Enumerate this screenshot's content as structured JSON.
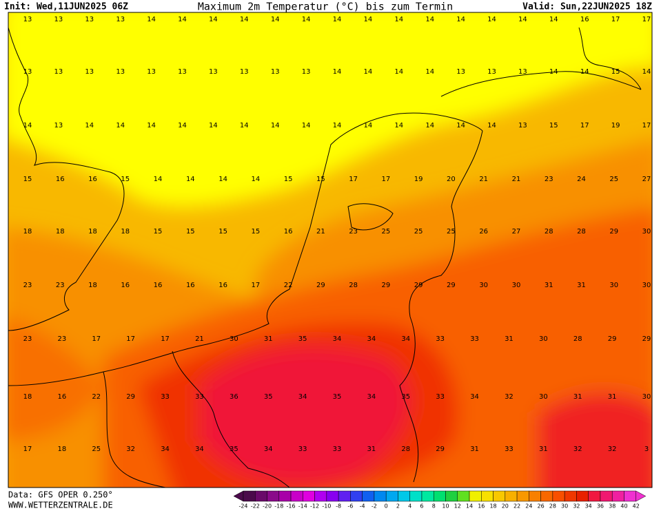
{
  "header": {
    "init": "Init: Wed,11JUN2025 06Z",
    "title": "Maximum 2m Temperatur (°C) bis zum Termin",
    "valid": "Valid: Sun,22JUN2025 18Z"
  },
  "map": {
    "rows": [
      [
        13,
        13,
        13,
        13,
        14,
        14,
        14,
        14,
        14,
        14,
        14,
        14,
        14,
        14,
        14,
        14,
        14,
        14,
        16,
        17,
        17
      ],
      [
        13,
        13,
        13,
        13,
        13,
        13,
        13,
        13,
        13,
        13,
        14,
        14,
        14,
        14,
        13,
        13,
        13,
        14,
        14,
        15,
        14
      ],
      [
        14,
        13,
        14,
        14,
        14,
        14,
        14,
        14,
        14,
        14,
        14,
        14,
        14,
        14,
        14,
        14,
        13,
        15,
        17,
        19,
        17
      ],
      [
        15,
        16,
        16,
        15,
        14,
        14,
        14,
        14,
        15,
        15,
        17,
        17,
        19,
        20,
        21,
        21,
        23,
        24,
        25,
        27
      ],
      [
        18,
        18,
        18,
        18,
        15,
        15,
        15,
        15,
        16,
        21,
        23,
        25,
        25,
        25,
        26,
        27,
        28,
        28,
        29,
        30
      ],
      [
        23,
        23,
        18,
        16,
        16,
        16,
        16,
        17,
        22,
        29,
        28,
        29,
        29,
        29,
        30,
        30,
        31,
        31,
        30,
        30
      ],
      [
        23,
        23,
        17,
        17,
        17,
        21,
        30,
        31,
        35,
        34,
        34,
        34,
        33,
        33,
        31,
        30,
        28,
        29,
        29
      ],
      [
        18,
        16,
        22,
        29,
        33,
        33,
        36,
        35,
        34,
        35,
        34,
        35,
        33,
        34,
        32,
        30,
        31,
        31,
        30
      ],
      [
        17,
        18,
        25,
        32,
        34,
        34,
        35,
        34,
        33,
        33,
        31,
        28,
        29,
        31,
        33,
        31,
        32,
        32,
        3
      ]
    ]
  },
  "colorbar": {
    "labels": [
      -24,
      -22,
      -20,
      -18,
      -16,
      -14,
      -12,
      -10,
      -8,
      -6,
      -4,
      -2,
      0,
      2,
      4,
      6,
      8,
      10,
      12,
      14,
      16,
      18,
      20,
      22,
      24,
      26,
      28,
      30,
      32,
      34,
      36,
      38,
      40,
      42
    ],
    "colors": [
      "#4b0a4b",
      "#6a0a6a",
      "#8a0a8a",
      "#a800a8",
      "#c800c8",
      "#e000e0",
      "#b000f0",
      "#8800f0",
      "#6020f0",
      "#3040f0",
      "#1060f0",
      "#0088f0",
      "#00a8f0",
      "#00c8e8",
      "#00e0c8",
      "#00e8a0",
      "#00e070",
      "#20d040",
      "#60e020",
      "#f0f000",
      "#f8e000",
      "#f8c800",
      "#f8b000",
      "#f89800",
      "#f88000",
      "#f86800",
      "#f85000",
      "#f03800",
      "#e82000",
      "#f01840",
      "#f01870",
      "#f020a0",
      "#f030d0"
    ]
  },
  "footer": {
    "data": "Data: GFS OPER 0.250°",
    "site": "WWW.WETTERZENTRALE.DE"
  }
}
